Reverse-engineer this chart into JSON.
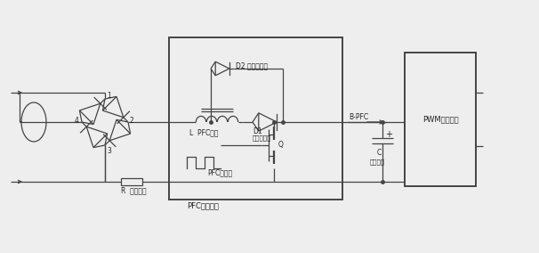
{
  "bg_color": "#eeeeee",
  "line_color": "#444444",
  "text_color": "#222222",
  "figsize": [
    6.06,
    2.84
  ],
  "dpi": 100,
  "labels": {
    "node1": "1",
    "node2": "2",
    "node3": "3",
    "node4": "4",
    "L_label": "L  PFC电感",
    "D1_label": "D1",
    "D1_sub": "升压二极管",
    "D2_label": "D2 保护二极管",
    "Q_label": "Q",
    "PFC_switch_label": "PFC开关管",
    "BPFC_label": "B-PFC",
    "C_label": "C",
    "cap_label": "滤波电容",
    "PWM_label": "PWM开关电源",
    "R_label": "R  电流检测",
    "PFC_box_label": "PFC开关电源"
  }
}
